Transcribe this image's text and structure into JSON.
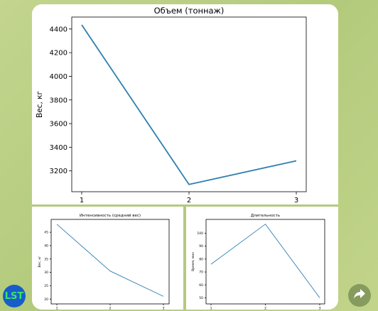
{
  "avatar": {
    "label": "LST"
  },
  "share_icon": "share-arrow-icon",
  "chart_data": [
    {
      "type": "line",
      "title": "Объем (тоннаж)",
      "xlabel": "",
      "ylabel": "Вес, кг",
      "x": [
        1,
        2,
        3
      ],
      "x_ticks": [
        "1",
        "2",
        "3"
      ],
      "y_ticks": [
        "3200",
        "3400",
        "3600",
        "3800",
        "4000",
        "4200",
        "4400"
      ],
      "ylim": [
        3085,
        4440
      ],
      "series": [
        {
          "values": [
            4435,
            3085,
            3285
          ],
          "color": "#2f7fb0"
        }
      ],
      "grid": false
    },
    {
      "type": "line",
      "title": "Интенсивность (средний вес)",
      "xlabel": "",
      "ylabel": "Вес, кг",
      "x": [
        1,
        2,
        3
      ],
      "x_ticks": [
        "1",
        "2",
        "3"
      ],
      "y_ticks": [
        "20",
        "25",
        "30",
        "35",
        "40",
        "45"
      ],
      "ylim": [
        19.5,
        48.5
      ],
      "series": [
        {
          "values": [
            48,
            30.5,
            21
          ],
          "color": "#2f7fb0"
        }
      ],
      "grid": false
    },
    {
      "type": "line",
      "title": "Длительность",
      "xlabel": "",
      "ylabel": "Время, мин",
      "x": [
        1,
        2,
        3
      ],
      "x_ticks": [
        "1",
        "2",
        "3"
      ],
      "y_ticks": [
        "50",
        "60",
        "70",
        "80",
        "90",
        "100"
      ],
      "ylim": [
        48,
        108
      ],
      "series": [
        {
          "values": [
            76,
            107,
            50
          ],
          "color": "#2f7fb0"
        }
      ],
      "grid": false
    }
  ]
}
